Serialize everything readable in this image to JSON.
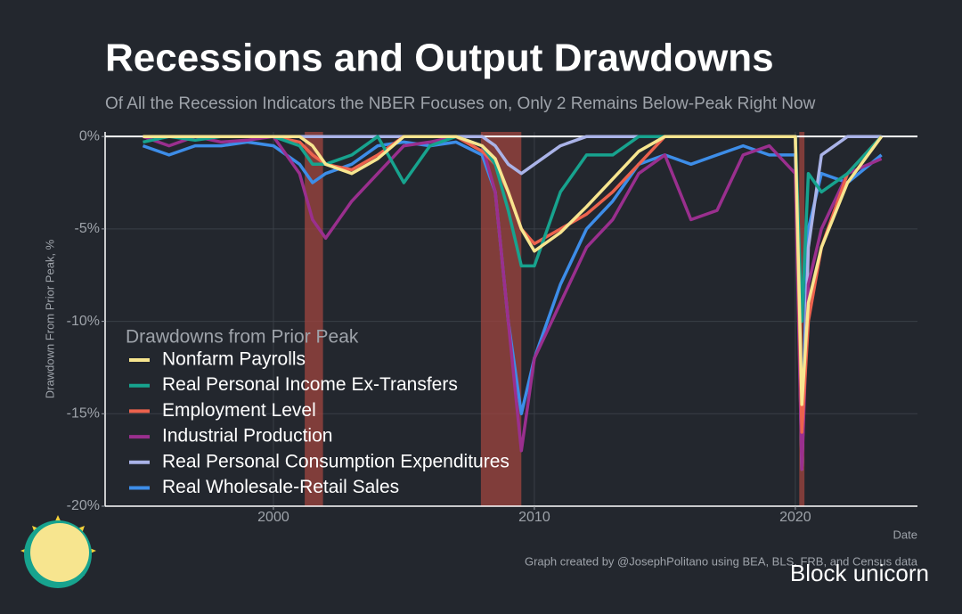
{
  "chart_data": {
    "type": "line",
    "title": "Recessions and Output Drawdowns",
    "subtitle": "Of All the Recession Indicators the NBER Focuses on, Only 2 Remains Below-Peak Right Now",
    "y_label": "Drawdown From Prior Peak, %",
    "x_label": "Date",
    "legend_title": "Drawdowns from Prior Peak",
    "caption": "Graph created by @JosephPolitano using BEA, BLS, FRB, and Census data",
    "watermark": "Block unicorn",
    "grid": true,
    "legend": "bottom-left",
    "recession_color": "#a0453f",
    "recessions": [
      [
        2001.2,
        2001.9
      ],
      [
        2007.95,
        2009.5
      ],
      [
        2020.15,
        2020.35
      ]
    ],
    "x": [
      1995,
      1996,
      1997,
      1998,
      1999,
      2000,
      2001,
      2001.5,
      2002,
      2003,
      2004,
      2005,
      2006,
      2007,
      2008,
      2008.5,
      2009,
      2009.5,
      2010,
      2011,
      2012,
      2013,
      2014,
      2015,
      2016,
      2017,
      2018,
      2019,
      2020,
      2020.25,
      2020.5,
      2021,
      2022,
      2023.3
    ],
    "xlim": [
      1993.55,
      2024.68
    ],
    "xticks": [
      2000,
      2010,
      2020
    ],
    "ylim": [
      -20,
      0.25
    ],
    "yticks": [
      {
        "value": 0,
        "label": "0%"
      },
      {
        "value": -5,
        "label": "-5%"
      },
      {
        "value": -10,
        "label": "-10%"
      },
      {
        "value": -15,
        "label": "-15%"
      },
      {
        "value": -20,
        "label": "-20%"
      }
    ],
    "series": [
      {
        "name": "Nonfarm Payrolls",
        "color": "#f7e58f",
        "values": [
          0,
          0,
          0,
          0,
          0,
          0,
          0,
          -0.5,
          -1.5,
          -2,
          -1.2,
          0,
          0,
          0,
          -0.5,
          -1.2,
          -3,
          -5,
          -6.2,
          -5.2,
          -3.8,
          -2.3,
          -0.8,
          0,
          0,
          0,
          0,
          0,
          0,
          -14.5,
          -9,
          -6,
          -2.5,
          0
        ]
      },
      {
        "name": "Real Personal Income Ex-Transfers",
        "color": "#17a38e",
        "values": [
          -0.3,
          0,
          -0.2,
          0,
          0,
          0,
          -0.5,
          -1.5,
          -1.5,
          -1,
          0,
          -2.5,
          -0.5,
          0,
          -0.5,
          -1.5,
          -4,
          -7,
          -7,
          -3,
          -1,
          -1,
          0,
          0,
          0,
          0,
          0,
          0,
          0,
          -10,
          -2,
          -3,
          -2,
          0
        ]
      },
      {
        "name": "Employment Level",
        "color": "#ec624d",
        "values": [
          0,
          0,
          0,
          0,
          0,
          0,
          -0.3,
          -1,
          -1.5,
          -1.8,
          -1,
          0,
          0,
          0,
          -0.8,
          -1.5,
          -3,
          -5,
          -5.8,
          -5,
          -4.2,
          -3,
          -1.5,
          0,
          0,
          0,
          0,
          0,
          0,
          -16,
          -10,
          -6,
          -2,
          0
        ]
      },
      {
        "name": "Industrial Production",
        "color": "#9a2f8e",
        "values": [
          0,
          -0.5,
          0,
          -0.3,
          -0.2,
          0,
          -2,
          -4.5,
          -5.5,
          -3.5,
          -2,
          -0.5,
          -0.3,
          0,
          -0.5,
          -3,
          -10,
          -17,
          -12,
          -9,
          -6,
          -4.5,
          -2,
          -1,
          -4.5,
          -4,
          -1,
          -0.5,
          -2,
          -18,
          -8,
          -5,
          -2,
          -1.2
        ]
      },
      {
        "name": "Real Personal Consumption Expenditures",
        "color": "#aab3e8",
        "values": [
          0,
          0,
          0,
          0,
          0,
          0,
          0,
          0,
          0,
          0,
          0,
          0,
          0,
          0,
          0,
          -0.5,
          -1.5,
          -2,
          -1.5,
          -0.5,
          0,
          0,
          0,
          0,
          0,
          0,
          0,
          0,
          0,
          -18,
          -6,
          -1,
          0,
          0
        ]
      },
      {
        "name": "Real Wholesale-Retail Sales",
        "color": "#3d8de8",
        "values": [
          -0.5,
          -1,
          -0.5,
          -0.5,
          -0.3,
          -0.5,
          -1.5,
          -2.5,
          -2,
          -1.5,
          -0.5,
          -0.3,
          -0.5,
          -0.3,
          -1,
          -3,
          -10,
          -15,
          -12,
          -8,
          -5,
          -3.5,
          -1.5,
          -1,
          -1.5,
          -1,
          -0.5,
          -1,
          -1,
          -16,
          -5,
          -2,
          -2.5,
          -1
        ]
      }
    ]
  }
}
